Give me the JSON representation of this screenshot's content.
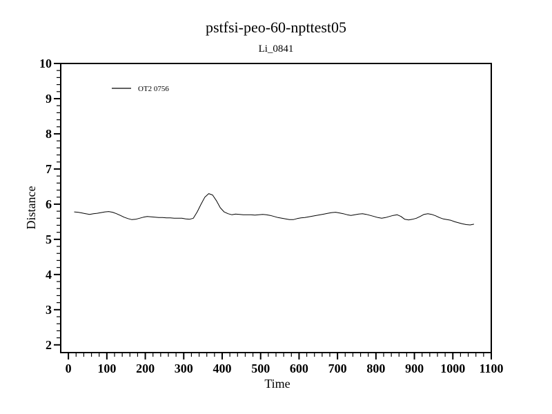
{
  "window": {
    "background_color": "#ffffff"
  },
  "chart_data": {
    "type": "line",
    "title": "pstfsi-peo-60-npttest05",
    "subtitle": "Li_0841",
    "xlabel": "Time",
    "ylabel": "Distance",
    "line_color": "#000000",
    "background_color": "#ffffff",
    "axis_color": "#000000",
    "grid": false,
    "legend_position": "top-left-inside",
    "legend": [
      {
        "label": "OT2 0756",
        "color": "#000000"
      }
    ],
    "xlim": [
      -20,
      1100
    ],
    "ylim": [
      1.78,
      10
    ],
    "x_major_ticks": [
      0,
      100,
      200,
      300,
      400,
      500,
      600,
      700,
      800,
      900,
      1000,
      1100
    ],
    "x_minor_step": 20,
    "y_major_ticks": [
      2,
      3,
      4,
      5,
      6,
      7,
      8,
      9,
      10
    ],
    "y_minor_step": 0.2,
    "series": [
      {
        "name": "OT2 0756",
        "color": "#000000",
        "x": [
          15,
          25,
          35,
          45,
          55,
          65,
          75,
          85,
          95,
          105,
          115,
          125,
          135,
          145,
          155,
          165,
          175,
          185,
          195,
          205,
          215,
          225,
          235,
          245,
          255,
          265,
          275,
          285,
          295,
          305,
          315,
          325,
          335,
          345,
          355,
          365,
          375,
          385,
          395,
          405,
          415,
          425,
          435,
          445,
          455,
          465,
          475,
          485,
          495,
          505,
          515,
          525,
          535,
          545,
          555,
          565,
          575,
          585,
          595,
          605,
          615,
          625,
          635,
          645,
          655,
          665,
          675,
          685,
          695,
          705,
          715,
          725,
          735,
          745,
          755,
          765,
          775,
          785,
          795,
          805,
          815,
          825,
          835,
          845,
          855,
          865,
          875,
          885,
          895,
          905,
          915,
          925,
          935,
          945,
          955,
          965,
          975,
          985,
          995,
          1005,
          1015,
          1025,
          1035,
          1045,
          1055
        ],
        "y": [
          5.78,
          5.77,
          5.75,
          5.73,
          5.71,
          5.73,
          5.74,
          5.76,
          5.78,
          5.79,
          5.77,
          5.73,
          5.68,
          5.63,
          5.59,
          5.56,
          5.57,
          5.6,
          5.63,
          5.65,
          5.64,
          5.63,
          5.62,
          5.62,
          5.61,
          5.61,
          5.6,
          5.6,
          5.6,
          5.58,
          5.57,
          5.6,
          5.78,
          6.0,
          6.2,
          6.3,
          6.26,
          6.1,
          5.9,
          5.78,
          5.73,
          5.7,
          5.72,
          5.71,
          5.7,
          5.7,
          5.7,
          5.69,
          5.7,
          5.71,
          5.7,
          5.68,
          5.65,
          5.62,
          5.6,
          5.58,
          5.56,
          5.56,
          5.59,
          5.61,
          5.62,
          5.64,
          5.66,
          5.68,
          5.7,
          5.72,
          5.74,
          5.76,
          5.77,
          5.75,
          5.73,
          5.7,
          5.68,
          5.7,
          5.72,
          5.73,
          5.71,
          5.68,
          5.65,
          5.62,
          5.6,
          5.62,
          5.65,
          5.68,
          5.7,
          5.65,
          5.57,
          5.55,
          5.57,
          5.6,
          5.65,
          5.71,
          5.73,
          5.71,
          5.67,
          5.62,
          5.58,
          5.56,
          5.54,
          5.5,
          5.47,
          5.44,
          5.42,
          5.41,
          5.43
        ]
      }
    ]
  }
}
